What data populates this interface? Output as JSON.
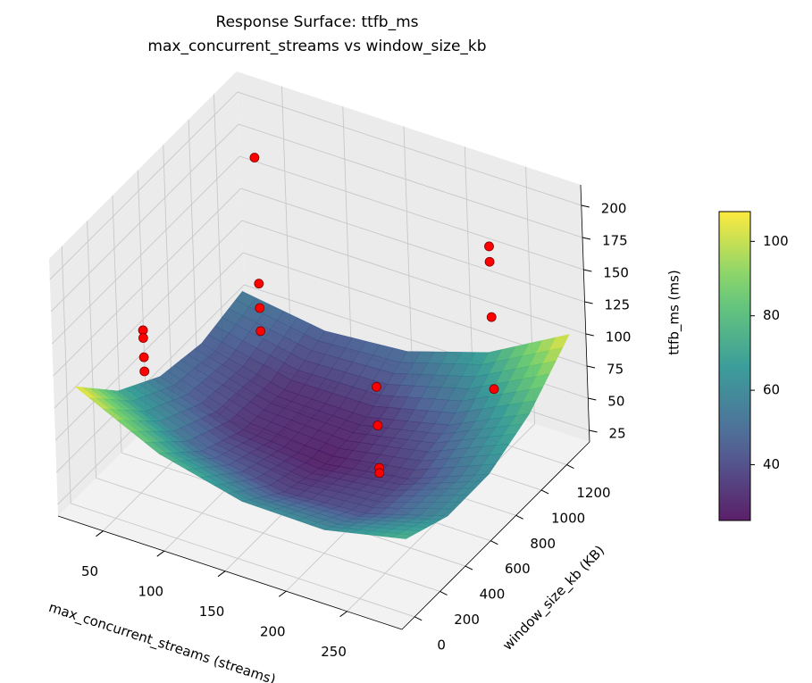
{
  "chart_data": {
    "type": "surface3d",
    "title": "Response Surface: ttfb_ms",
    "subtitle": "max_concurrent_streams vs window_size_kb",
    "xlabel": "max_concurrent_streams (streams)",
    "ylabel": "window_size_kb (KB)",
    "zlabel": "ttfb_ms (ms)",
    "xlim": [
      13,
      295
    ],
    "ylim": [
      -100,
      1380
    ],
    "zlim": [
      16,
      216
    ],
    "xticks": [
      50,
      100,
      150,
      200,
      250
    ],
    "yticks": [
      0,
      200,
      400,
      600,
      800,
      1000,
      1200
    ],
    "zticks": [
      25,
      50,
      75,
      100,
      125,
      150,
      175,
      200
    ],
    "grid": true,
    "colormap": "viridis",
    "clim": [
      25,
      108
    ],
    "cticks": [
      40,
      60,
      80,
      100
    ],
    "surface": {
      "x": [
        20,
        87.5,
        155,
        222.5,
        290
      ],
      "y": [
        0,
        325,
        650,
        975,
        1300
      ],
      "z": [
        [
          109,
          78,
          62,
          61,
          75
        ],
        [
          73.6,
          47.9,
          37.2,
          41.5,
          60.8
        ],
        [
          52.8,
          32.4,
          27,
          36.6,
          61.3
        ],
        [
          46.6,
          31.5,
          31.4,
          46.3,
          76.3
        ],
        [
          55,
          45.3,
          50.5,
          70.8,
          106
        ]
      ]
    },
    "points": {
      "color": "#ff0000",
      "x": [
        64,
        64,
        64,
        64,
        64,
        64,
        64,
        64,
        256,
        256,
        256,
        256,
        256,
        256,
        256,
        256
      ],
      "y": [
        128,
        128,
        128,
        128,
        1024,
        1024,
        1024,
        1024,
        128,
        128,
        128,
        128,
        1024,
        1024,
        1024,
        1024
      ],
      "z": [
        154,
        148,
        133,
        122,
        200,
        102,
        83,
        65,
        170,
        140,
        107,
        103,
        191,
        179,
        136,
        80
      ]
    }
  }
}
